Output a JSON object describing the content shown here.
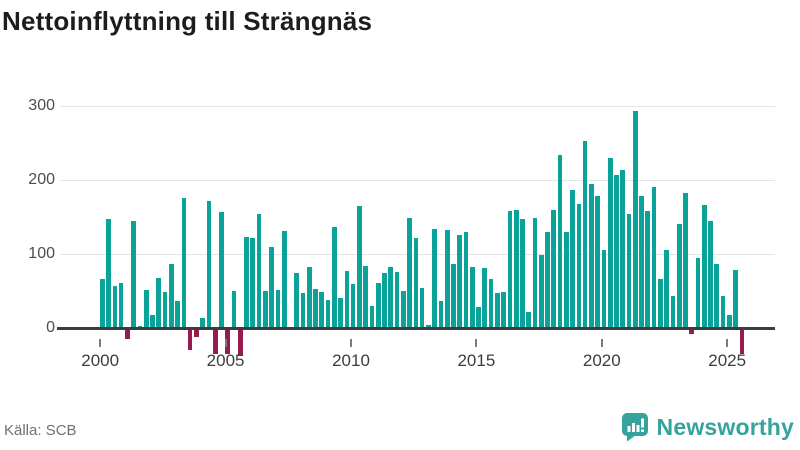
{
  "title": "Nettoinflyttning till Strängnäs",
  "footer": {
    "source": "Källa: SCB",
    "brand": "Newsworthy"
  },
  "chart_data": {
    "type": "bar",
    "title": "Nettoinflyttning till Strängnäs",
    "frequency": "quarterly",
    "x_tick_labels": [
      "2000",
      "2005",
      "2010",
      "2015",
      "2020",
      "2025"
    ],
    "y_ticks": [
      0,
      100,
      200,
      300
    ],
    "ylim": [
      -50,
      300
    ],
    "grid": "horizontal",
    "legend": "none",
    "positive_color": "#0ba29a",
    "negative_color": "#991a4e",
    "values_by_year": {
      "2000": [
        66,
        147,
        57,
        61
      ],
      "2001": [
        -12,
        145,
        3,
        51
      ],
      "2002": [
        17,
        68,
        49,
        86
      ],
      "2003": [
        36,
        176,
        -27,
        -10
      ],
      "2004": [
        13,
        172,
        -32,
        157
      ],
      "2005": [
        -33,
        50,
        -35,
        123
      ],
      "2006": [
        121,
        154,
        50,
        110
      ],
      "2007": [
        51,
        131,
        0,
        74
      ],
      "2008": [
        47,
        82,
        53,
        49
      ],
      "2009": [
        38,
        137,
        40,
        77
      ],
      "2010": [
        60,
        165,
        84,
        30
      ],
      "2011": [
        61,
        74,
        82,
        76
      ],
      "2012": [
        50,
        148,
        122,
        54
      ],
      "2013": [
        4,
        134,
        36,
        133
      ],
      "2014": [
        86,
        126,
        130,
        82
      ],
      "2015": [
        28,
        81,
        66,
        47
      ],
      "2016": [
        49,
        158,
        159,
        147
      ],
      "2017": [
        22,
        148,
        99,
        130
      ],
      "2018": [
        160,
        234,
        130,
        186
      ],
      "2019": [
        167,
        253,
        195,
        179
      ],
      "2020": [
        106,
        230,
        207,
        213
      ],
      "2021": [
        154,
        293,
        178,
        158
      ],
      "2022": [
        191,
        66,
        106,
        43
      ],
      "2023": [
        140,
        182,
        -6,
        94
      ],
      "2024": [
        166,
        145,
        87,
        43
      ],
      "2025": [
        17,
        78,
        -32
      ]
    }
  }
}
